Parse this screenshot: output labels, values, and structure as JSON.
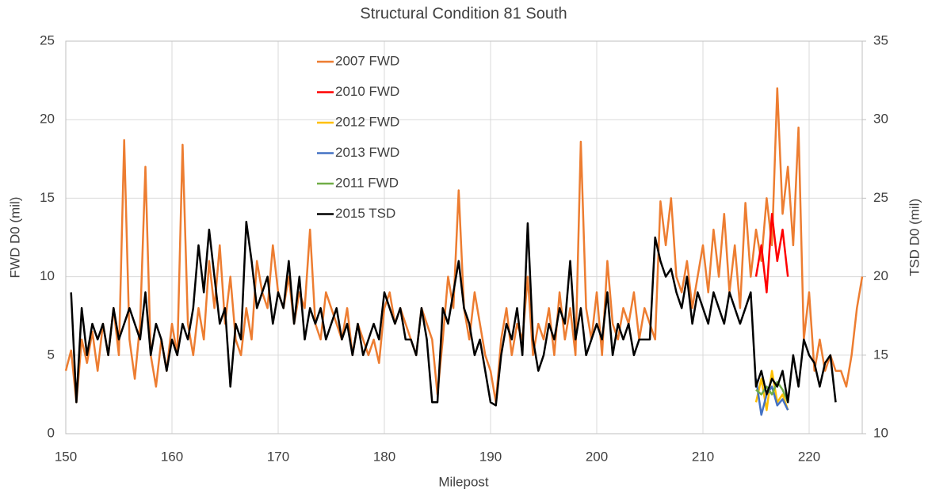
{
  "chart_data": {
    "type": "line",
    "title": "Structural Condition 81 South",
    "x_label": "Milepost",
    "y_label": "FWD D0 (mil)",
    "y2_label": "TSD D0 (mil)",
    "xlim": [
      150,
      225
    ],
    "xticks": [
      150,
      160,
      170,
      180,
      190,
      200,
      210,
      220
    ],
    "ylim": [
      0,
      25
    ],
    "yticks": [
      0,
      5,
      10,
      15,
      20,
      25
    ],
    "y2lim": [
      10,
      35
    ],
    "y2ticks": [
      10,
      15,
      20,
      25,
      30,
      35
    ],
    "grid": true,
    "x": [
      150,
      150.5,
      151,
      151.5,
      152,
      152.5,
      153,
      153.5,
      154,
      154.5,
      155,
      155.5,
      156,
      156.5,
      157,
      157.5,
      158,
      158.5,
      159,
      159.5,
      160,
      160.5,
      161,
      161.5,
      162,
      162.5,
      163,
      163.5,
      164,
      164.5,
      165,
      165.5,
      166,
      166.5,
      167,
      167.5,
      168,
      168.5,
      169,
      169.5,
      170,
      170.5,
      171,
      171.5,
      172,
      172.5,
      173,
      173.5,
      174,
      174.5,
      175,
      175.5,
      176,
      176.5,
      177,
      177.5,
      178,
      178.5,
      179,
      179.5,
      180,
      180.5,
      181,
      181.5,
      182,
      182.5,
      183,
      183.5,
      184,
      184.5,
      185,
      185.5,
      186,
      186.5,
      187,
      187.5,
      188,
      188.5,
      189,
      189.5,
      190,
      190.5,
      191,
      191.5,
      192,
      192.5,
      193,
      193.5,
      194,
      194.5,
      195,
      195.5,
      196,
      196.5,
      197,
      197.5,
      198,
      198.5,
      199,
      199.5,
      200,
      200.5,
      201,
      201.5,
      202,
      202.5,
      203,
      203.5,
      204,
      204.5,
      205,
      205.5,
      206,
      206.5,
      207,
      207.5,
      208,
      208.5,
      209,
      209.5,
      210,
      210.5,
      211,
      211.5,
      212,
      212.5,
      213,
      213.5,
      214,
      214.5,
      215,
      215.5,
      216,
      216.5,
      217,
      217.5,
      218,
      218.5,
      219,
      219.5,
      220,
      220.5,
      221,
      221.5,
      222,
      222.5,
      223,
      223.5,
      224,
      224.5,
      225
    ],
    "series": [
      {
        "name": "2007 FWD",
        "color": "#ed7d31",
        "values": [
          4,
          5.3,
          2,
          6,
          4.5,
          6.5,
          4,
          7,
          5,
          8,
          5,
          18.7,
          6,
          3.5,
          7,
          17,
          5,
          3,
          6,
          4,
          7,
          5,
          18.4,
          7,
          5,
          8,
          6,
          11,
          8,
          12,
          7,
          10,
          6,
          5,
          8,
          6,
          11,
          9,
          8,
          12,
          9,
          8,
          10,
          7,
          9,
          8,
          13,
          7,
          6,
          9,
          8,
          7,
          6,
          8,
          5,
          7,
          6,
          5,
          6,
          4.5,
          8,
          9,
          7,
          8,
          7,
          6,
          5,
          8,
          7,
          6,
          2.5,
          6,
          10,
          8,
          15.5,
          8,
          6,
          9,
          7,
          5,
          4,
          2,
          6,
          8,
          5,
          7,
          6,
          10,
          5,
          7,
          6,
          8,
          5,
          9,
          6,
          8,
          5,
          18.6,
          8,
          6,
          9,
          5,
          11,
          7,
          6,
          8,
          7,
          9,
          6,
          8,
          7,
          6,
          14.8,
          12,
          15,
          10,
          9,
          11,
          8,
          10,
          12,
          9,
          13,
          10,
          14,
          9,
          12,
          8,
          14.7,
          10,
          13,
          11,
          15,
          12,
          22,
          14,
          17,
          12,
          19.5,
          6,
          9,
          4,
          6,
          4,
          5,
          4,
          4,
          3,
          5,
          8,
          10
        ]
      },
      {
        "name": "2010 FWD",
        "color": "#ff0000",
        "x": [
          215,
          215.5,
          216,
          216.5,
          217,
          217.5,
          218
        ],
        "values": [
          10,
          12,
          9,
          14,
          11,
          13,
          10
        ]
      },
      {
        "name": "2012 FWD",
        "color": "#ffc000",
        "x": [
          215,
          215.5,
          216,
          216.5,
          217,
          217.5,
          218
        ],
        "values": [
          2,
          3.5,
          1.5,
          4,
          2,
          2.5,
          1.5
        ]
      },
      {
        "name": "2013 FWD",
        "color": "#4472c4",
        "x": [
          215,
          215.5,
          216,
          216.5,
          217,
          217.5,
          218
        ],
        "values": [
          3.5,
          1.2,
          2.5,
          3,
          1.8,
          2.2,
          1.5
        ]
      },
      {
        "name": "2011 FWD",
        "color": "#70ad47",
        "x": [
          215,
          215.5,
          216,
          216.5,
          217,
          217.5,
          218
        ],
        "values": [
          2.8,
          2.5,
          3,
          2.5,
          3.3,
          2.8,
          2
        ]
      },
      {
        "name": "2015 TSD",
        "color": "#000000",
        "axis": "y2",
        "values": [
          null,
          19,
          12,
          18,
          15,
          17,
          16,
          17,
          15,
          18,
          16,
          17,
          18,
          17,
          16,
          19,
          15,
          17,
          16,
          14,
          16,
          15,
          17,
          16,
          18,
          22,
          19,
          23,
          20,
          17,
          18,
          13,
          17,
          16,
          23.5,
          21,
          18,
          19,
          20,
          17,
          19,
          18,
          21,
          17,
          20,
          16,
          18,
          17,
          18,
          16,
          17,
          18,
          16,
          17,
          15,
          17,
          15,
          16,
          17,
          16,
          19,
          18,
          17,
          18,
          16,
          16,
          15,
          18,
          16,
          12,
          12,
          18,
          17,
          19,
          21,
          18,
          17,
          15,
          16,
          14,
          12,
          11.8,
          15,
          17,
          16,
          18,
          15,
          23.4,
          16,
          14,
          15,
          17,
          16,
          18,
          17,
          21,
          16,
          18,
          15,
          16,
          17,
          16,
          19,
          15,
          17,
          16,
          17,
          15,
          16,
          16,
          16,
          22.5,
          21,
          20,
          20.5,
          19,
          18,
          20,
          17,
          19,
          18,
          17,
          19,
          18,
          17,
          19,
          18,
          17,
          18,
          19,
          13,
          14,
          12.5,
          13.5,
          13,
          14,
          12,
          15,
          13,
          16,
          15,
          14.5,
          13,
          14.5,
          15,
          12,
          null,
          null,
          null,
          null,
          null
        ]
      }
    ]
  }
}
